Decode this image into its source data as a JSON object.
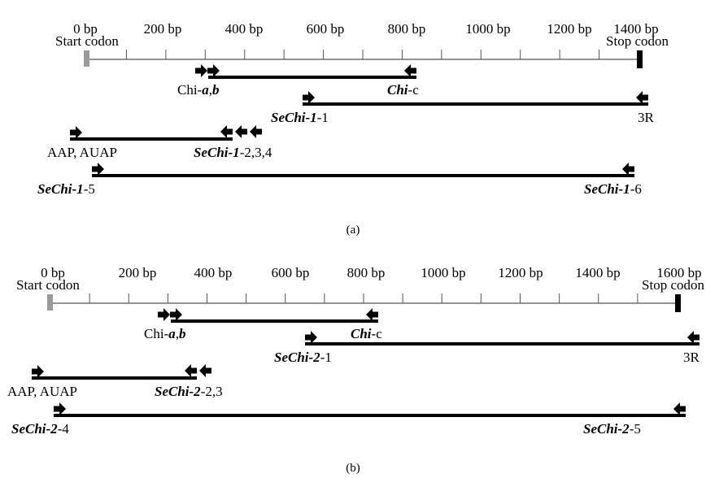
{
  "panels": [
    {
      "caption": "(a)",
      "ticks": [
        "0 bp",
        "200 bp",
        "400 bp",
        "600 bp",
        "800 bp",
        "1000 bp",
        "1200 bp",
        "1400 bp"
      ],
      "start_label": "Start codon",
      "stop_label": "Stop codon",
      "labels": {
        "chi_ab": {
          "pre": "Chi-",
          "it": "a",
          "mid": ",",
          "it2": "b"
        },
        "chi_c": {
          "it": "Chi",
          "post": "-c"
        },
        "sechi_1": {
          "it": "SeChi-1",
          "post": "-1"
        },
        "r3": {
          "post": "3R"
        },
        "aap": {
          "post": "AAP, AUAP"
        },
        "sechi_234": {
          "it": "SeChi-1",
          "post": "-2,3,4"
        },
        "sechi_5": {
          "it": "SeChi-1",
          "post": "-5"
        },
        "sechi_6": {
          "it": "SeChi-1",
          "post": "-6"
        }
      }
    },
    {
      "caption": "(b)",
      "ticks": [
        "0 bp",
        "200 bp",
        "400 bp",
        "600 bp",
        "800 bp",
        "1000 bp",
        "1200 bp",
        "1400 bp",
        "1600 bp"
      ],
      "start_label": "Start codon",
      "stop_label": "Stop codon",
      "labels": {
        "chi_ab": {
          "pre": "Chi-",
          "it": "a",
          "mid": ",",
          "it2": "b"
        },
        "chi_c": {
          "it": "Chi",
          "post": "-c"
        },
        "sechi_1": {
          "it": "SeChi-2",
          "post": "-1"
        },
        "r3": {
          "post": "3R"
        },
        "aap": {
          "post": "AAP, AUAP"
        },
        "sechi_23": {
          "it": "SeChi-2",
          "post": "-2,3"
        },
        "sechi_4": {
          "it": "SeChi-2",
          "post": "-4"
        },
        "sechi_5": {
          "it": "SeChi-2",
          "post": "-5"
        }
      }
    }
  ]
}
